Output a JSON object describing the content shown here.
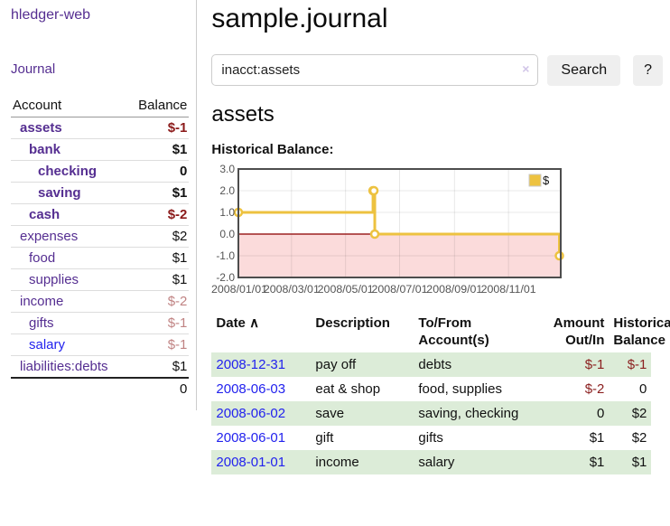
{
  "app": {
    "title": "hledger-web"
  },
  "colors": {
    "link_purple": "#552e91",
    "link_blue": "#2222ee",
    "negative_strong": "#8b1a1a",
    "negative_soft": "#c08383",
    "row_stripe_green": "#dcecd8",
    "button_gray": "#efefef"
  },
  "sidebar": {
    "journal_link": "Journal",
    "accounts_table": {
      "headers": {
        "account": "Account",
        "balance": "Balance"
      },
      "rows": [
        {
          "name": "assets",
          "balance": "$-1",
          "depth": 0,
          "bold": true,
          "link": "visited"
        },
        {
          "name": "bank",
          "balance": "$1",
          "depth": 1,
          "bold": true,
          "link": "visited"
        },
        {
          "name": "checking",
          "balance": "0",
          "depth": 2,
          "bold": true,
          "link": "visited"
        },
        {
          "name": "saving",
          "balance": "$1",
          "depth": 2,
          "bold": true,
          "link": "visited"
        },
        {
          "name": "cash",
          "balance": "$-2",
          "depth": 1,
          "bold": true,
          "link": "visited"
        },
        {
          "name": "expenses",
          "balance": "$2",
          "depth": 0,
          "bold": false,
          "link": "visited"
        },
        {
          "name": "food",
          "balance": "$1",
          "depth": 1,
          "bold": false,
          "link": "visited"
        },
        {
          "name": "supplies",
          "balance": "$1",
          "depth": 1,
          "bold": false,
          "link": "visited"
        },
        {
          "name": "income",
          "balance": "$-2",
          "depth": 0,
          "bold": false,
          "link": "visited"
        },
        {
          "name": "gifts",
          "balance": "$-1",
          "depth": 1,
          "bold": false,
          "link": "visited"
        },
        {
          "name": "salary",
          "balance": "$-1",
          "depth": 1,
          "bold": false,
          "link": "new"
        },
        {
          "name": "liabilities:debts",
          "balance": "$1",
          "depth": 0,
          "bold": false,
          "link": "visited"
        }
      ],
      "total": "0"
    }
  },
  "main": {
    "title": "sample.journal",
    "search": {
      "value": "inacct:assets",
      "placeholder": "",
      "clear_icon": "×",
      "button": "Search",
      "help_button": "?"
    },
    "account_heading": "assets",
    "chart_label": "Historical Balance:"
  },
  "chart_data": {
    "type": "line",
    "title": "Historical Balance",
    "style": "step-after",
    "series": [
      {
        "name": "$",
        "points": [
          [
            "2008-01-01",
            1
          ],
          [
            "2008-06-01",
            2
          ],
          [
            "2008-06-02",
            2
          ],
          [
            "2008-06-03",
            0
          ],
          [
            "2008-12-31",
            -1
          ]
        ]
      }
    ],
    "xlim": [
      "2008-01-01",
      "2008-12-31"
    ],
    "ylim": [
      -2,
      3
    ],
    "xticks": {
      "dates": [
        "2008-01-01",
        "2008-03-01",
        "2008-05-01",
        "2008-07-01",
        "2008-09-01",
        "2008-11-01"
      ],
      "labels": [
        "2008/01/01",
        "2008/03/01",
        "2008/05/01",
        "2008/07/01",
        "2008/09/01",
        "2008/11/01"
      ]
    },
    "yticks": {
      "values": [
        3,
        2,
        1,
        0,
        -1,
        -2
      ],
      "labels": [
        "3.0",
        "2.0",
        "1.0",
        "0.0",
        "-1.0",
        "-2.0"
      ]
    },
    "legend": {
      "position": "top-right",
      "entries": [
        "$"
      ]
    },
    "grid": true,
    "colors": {
      "series": "#edc240",
      "zero_line": "#9c2222",
      "negative_fill": "#fbdbdb",
      "grid_line": "#e2e2e2",
      "border": "#4d4d4d",
      "tick_text": "#545454"
    }
  },
  "register_table": {
    "headers": {
      "date": "Date",
      "sort_icon": "∧",
      "description": "Description",
      "accounts": "To/From Account(s)",
      "amount": "Amount Out/In",
      "balance": "Historical Balance"
    },
    "rows": [
      {
        "date": "2008-12-31",
        "description": "pay off",
        "accounts": "debts",
        "amount": "$-1",
        "balance": "$-1"
      },
      {
        "date": "2008-06-03",
        "description": "eat & shop",
        "accounts": "food, supplies",
        "amount": "$-2",
        "balance": "0"
      },
      {
        "date": "2008-06-02",
        "description": "save",
        "accounts": "saving, checking",
        "amount": "0",
        "balance": "$2"
      },
      {
        "date": "2008-06-01",
        "description": "gift",
        "accounts": "gifts",
        "amount": "$1",
        "balance": "$2"
      },
      {
        "date": "2008-01-01",
        "description": "income",
        "accounts": "salary",
        "amount": "$1",
        "balance": "$1"
      }
    ]
  }
}
